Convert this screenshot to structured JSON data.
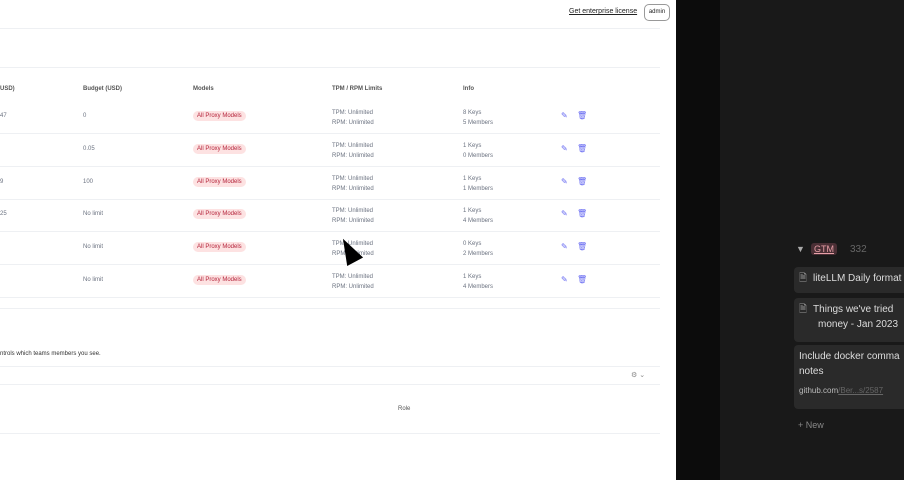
{
  "header": {
    "license_link": "Get enterprise license",
    "user_button": "admin"
  },
  "table": {
    "columns": [
      "USD)",
      "Budget (USD)",
      "Models",
      "TPM / RPM Limits",
      "Info"
    ],
    "rows": [
      {
        "spend": "47",
        "budget": "0",
        "model": "All Proxy Models",
        "tpm": "TPM: Unlimited",
        "rpm": "RPM: Unlimited",
        "keys": "8 Keys",
        "members": "5 Members"
      },
      {
        "spend": "",
        "budget": "0.05",
        "model": "All Proxy Models",
        "tpm": "TPM: Unlimited",
        "rpm": "RPM: Unlimited",
        "keys": "1 Keys",
        "members": "0 Members"
      },
      {
        "spend": "9",
        "budget": "100",
        "model": "All Proxy Models",
        "tpm": "TPM: Unlimited",
        "rpm": "RPM: Unlimited",
        "keys": "1 Keys",
        "members": "1 Members"
      },
      {
        "spend": "25",
        "budget": "No limit",
        "model": "All Proxy Models",
        "tpm": "TPM: Unlimited",
        "rpm": "RPM: Unlimited",
        "keys": "1 Keys",
        "members": "4 Members"
      },
      {
        "spend": "",
        "budget": "No limit",
        "model": "All Proxy Models",
        "tpm": "TPM: Unlimited",
        "rpm": "RPM: Unlimited",
        "keys": "0 Keys",
        "members": "2 Members"
      },
      {
        "spend": "",
        "budget": "No limit",
        "model": "All Proxy Models",
        "tpm": "TPM: Unlimited",
        "rpm": "RPM: Unlimited",
        "keys": "1 Keys",
        "members": "4 Members"
      }
    ]
  },
  "members": {
    "note": "ntrols which teams members you see.",
    "role_header": "Role"
  },
  "board": {
    "group": "GTM",
    "count": "332",
    "cards": [
      {
        "title": "liteLLM Daily format"
      },
      {
        "title": "Things we've tried",
        "title2": "money - Jan 2023"
      },
      {
        "title": "Include docker comma",
        "title2": "notes",
        "link": "github.com",
        "link_rest": "/Ber...s/2587"
      }
    ],
    "new_label": "+ New"
  },
  "colors": {
    "accent": "#6366f1",
    "pill_bg": "#fde2e2",
    "pill_text": "#b4233a",
    "dark_bg": "#191919"
  }
}
